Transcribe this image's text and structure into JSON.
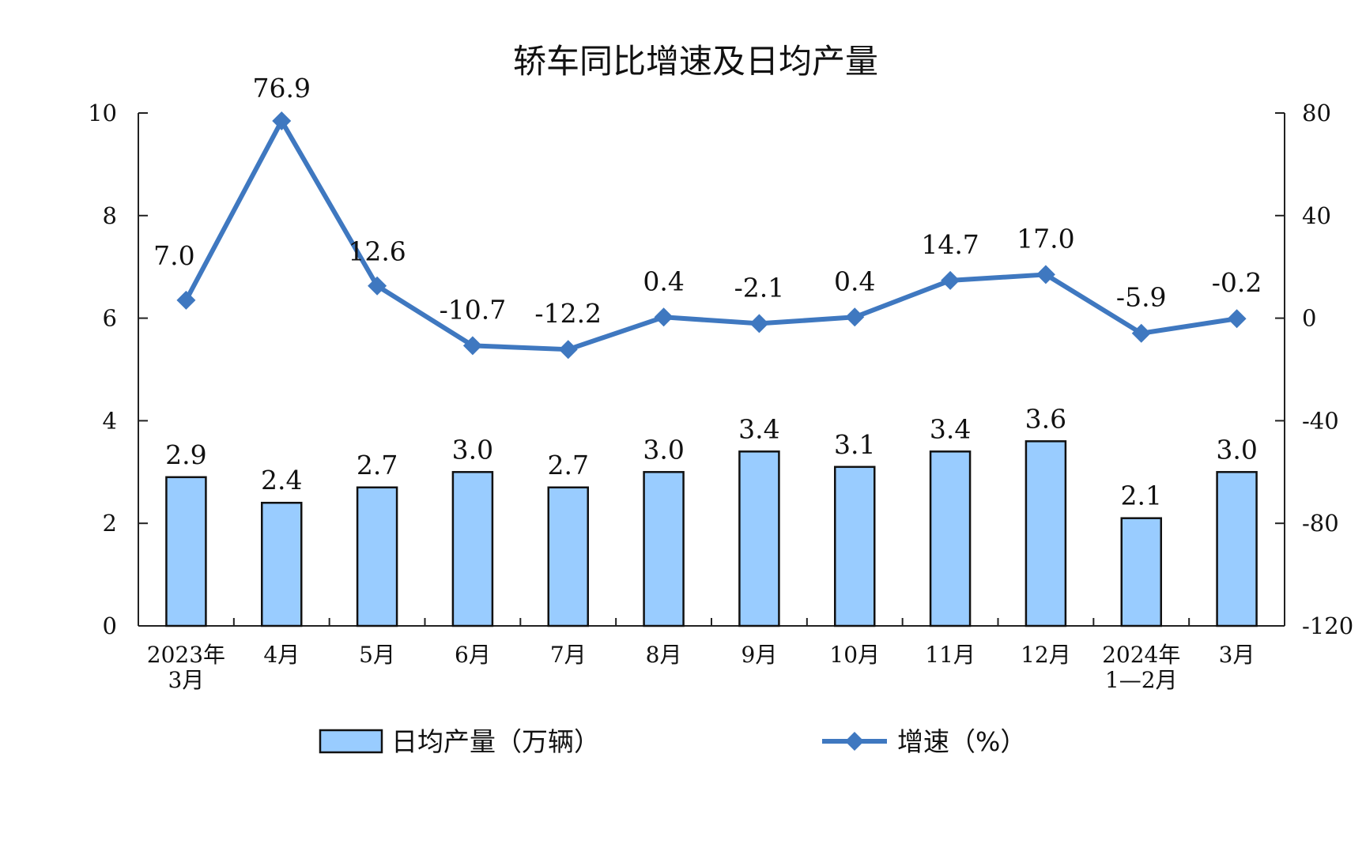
{
  "chart_data": {
    "type": "bar+line",
    "title": "轿车同比增速及日均产量",
    "categories": [
      [
        "2023年",
        "3月"
      ],
      [
        "4月"
      ],
      [
        "5月"
      ],
      [
        "6月"
      ],
      [
        "7月"
      ],
      [
        "8月"
      ],
      [
        "9月"
      ],
      [
        "10月"
      ],
      [
        "11月"
      ],
      [
        "12月"
      ],
      [
        "2024年",
        "1—2月"
      ],
      [
        "3月"
      ]
    ],
    "series": [
      {
        "name": "日均产量（万辆）",
        "type": "bar",
        "axis": "left",
        "values": [
          2.9,
          2.4,
          2.7,
          3.0,
          2.7,
          3.0,
          3.4,
          3.1,
          3.4,
          3.6,
          2.1,
          3.0
        ],
        "labels": [
          "2.9",
          "2.4",
          "2.7",
          "3.0",
          "2.7",
          "3.0",
          "3.4",
          "3.1",
          "3.4",
          "3.6",
          "2.1",
          "3.0"
        ],
        "color": "#99ccff"
      },
      {
        "name": "增速（%）",
        "type": "line",
        "axis": "right",
        "values": [
          7.0,
          76.9,
          12.6,
          -10.7,
          -12.2,
          0.4,
          -2.1,
          0.4,
          14.7,
          17.0,
          -5.9,
          -0.2
        ],
        "labels": [
          "7.0",
          "76.9",
          "12.6",
          "-10.7",
          "-12.2",
          "0.4",
          "-2.1",
          "0.4",
          "14.7",
          "17.0",
          "-5.9",
          "-0.2"
        ],
        "color": "#3f78c0"
      }
    ],
    "y_left": {
      "min": 0,
      "max": 10,
      "ticks": [
        "0",
        "2",
        "4",
        "6",
        "8",
        "10"
      ]
    },
    "y_right": {
      "min": -120,
      "max": 80,
      "ticks": [
        "-120",
        "-80",
        "-40",
        "0",
        "40",
        "80"
      ]
    },
    "legend_position": "bottom",
    "grid": false
  }
}
